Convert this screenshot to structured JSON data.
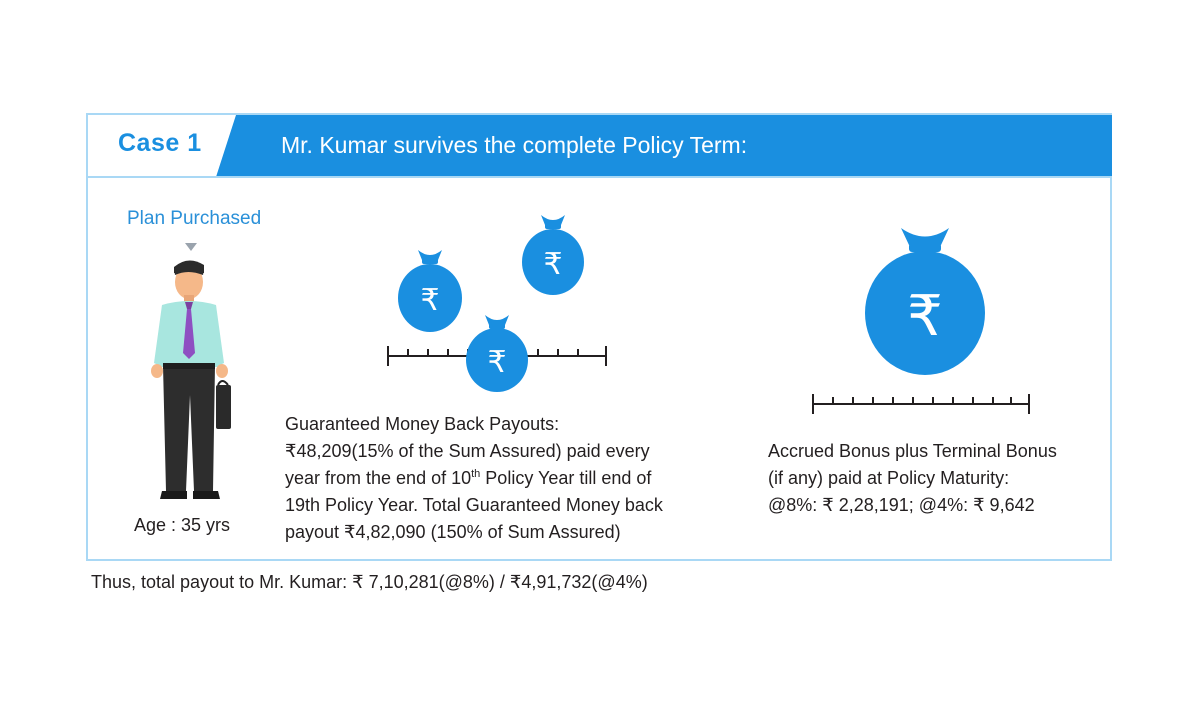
{
  "header": {
    "case_label": "Case 1",
    "title": "Mr. Kumar survives the complete Policy Term:"
  },
  "plan": {
    "label": "Plan Purchased",
    "age": "Age : 35 yrs"
  },
  "money_back": {
    "line1": "Guaranteed Money Back Payouts:",
    "line2": "₹48,209(15% of the Sum Assured) paid every",
    "line3_pre": "year from the end of 10",
    "line3_sup": "th",
    "line3_post": " Policy Year till end of",
    "line4": "19th Policy Year. Total Guaranteed Money back",
    "line5": "payout ₹4,82,090 (150% of Sum Assured)"
  },
  "maturity": {
    "line1": "Accrued Bonus plus Terminal Bonus",
    "line2": "(if any) paid at Policy Maturity:",
    "line3": "@8%: ₹ 2,28,191; @4%: ₹ 9,642"
  },
  "footer": {
    "text": "Thus, total payout to Mr. Kumar: ₹ 7,10,281(@8%) / ₹4,91,732(@4%)"
  },
  "symbols": {
    "rupee": "₹"
  },
  "colors": {
    "accent": "#1a8fe0",
    "border": "#a9d8f5"
  }
}
